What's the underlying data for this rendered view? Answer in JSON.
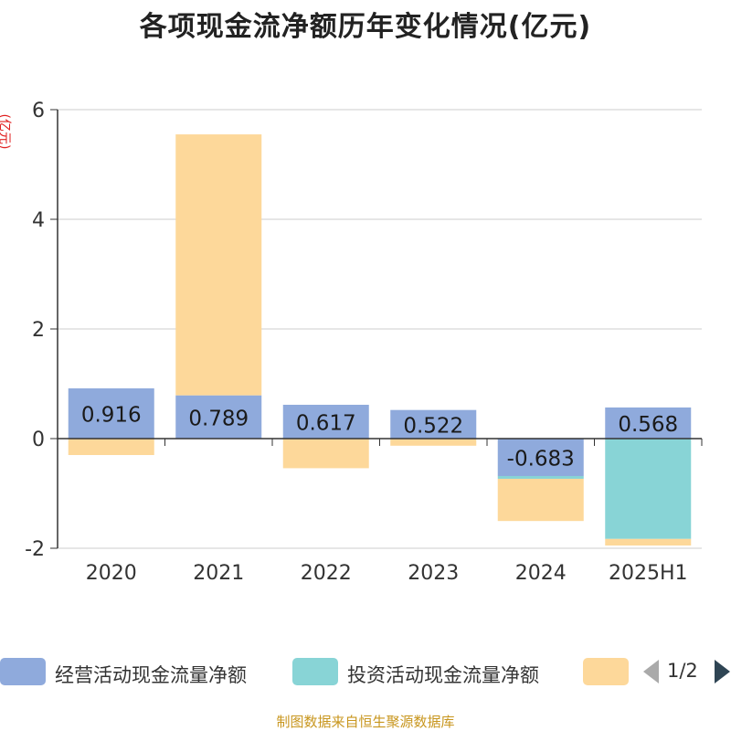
{
  "chart_data": {
    "type": "bar",
    "title": "各项现金流净额历年变化情况(亿元)",
    "unit_label": "(亿元)",
    "categories": [
      "2020",
      "2021",
      "2022",
      "2023",
      "2024",
      "2025H1"
    ],
    "ylim": [
      -2,
      6
    ],
    "yticks": [
      6,
      4,
      2,
      0,
      -2
    ],
    "grid": true,
    "stacked": true,
    "legend_position": "bottom",
    "series": [
      {
        "name": "经营活动现金流量净额",
        "color": "#8faadc",
        "values": [
          0.916,
          0.789,
          0.617,
          0.522,
          -0.683,
          0.568
        ],
        "labels": [
          "0.916",
          "0.789",
          "0.617",
          "0.522",
          "-0.683",
          "0.568"
        ]
      },
      {
        "name": "投资活动现金流量净额",
        "color": "#88d4d6",
        "values": [
          0.0,
          0.0,
          -0.01,
          0.0,
          -0.05,
          -1.83
        ],
        "labels": []
      },
      {
        "name": "",
        "color": "#fdd89a",
        "values": [
          -0.3,
          4.76,
          -0.53,
          -0.13,
          -0.77,
          -0.12
        ],
        "labels": []
      }
    ]
  },
  "legend": {
    "pager_text": "1/2"
  },
  "footer": {
    "source": "制图数据来自恒生聚源数据库"
  }
}
